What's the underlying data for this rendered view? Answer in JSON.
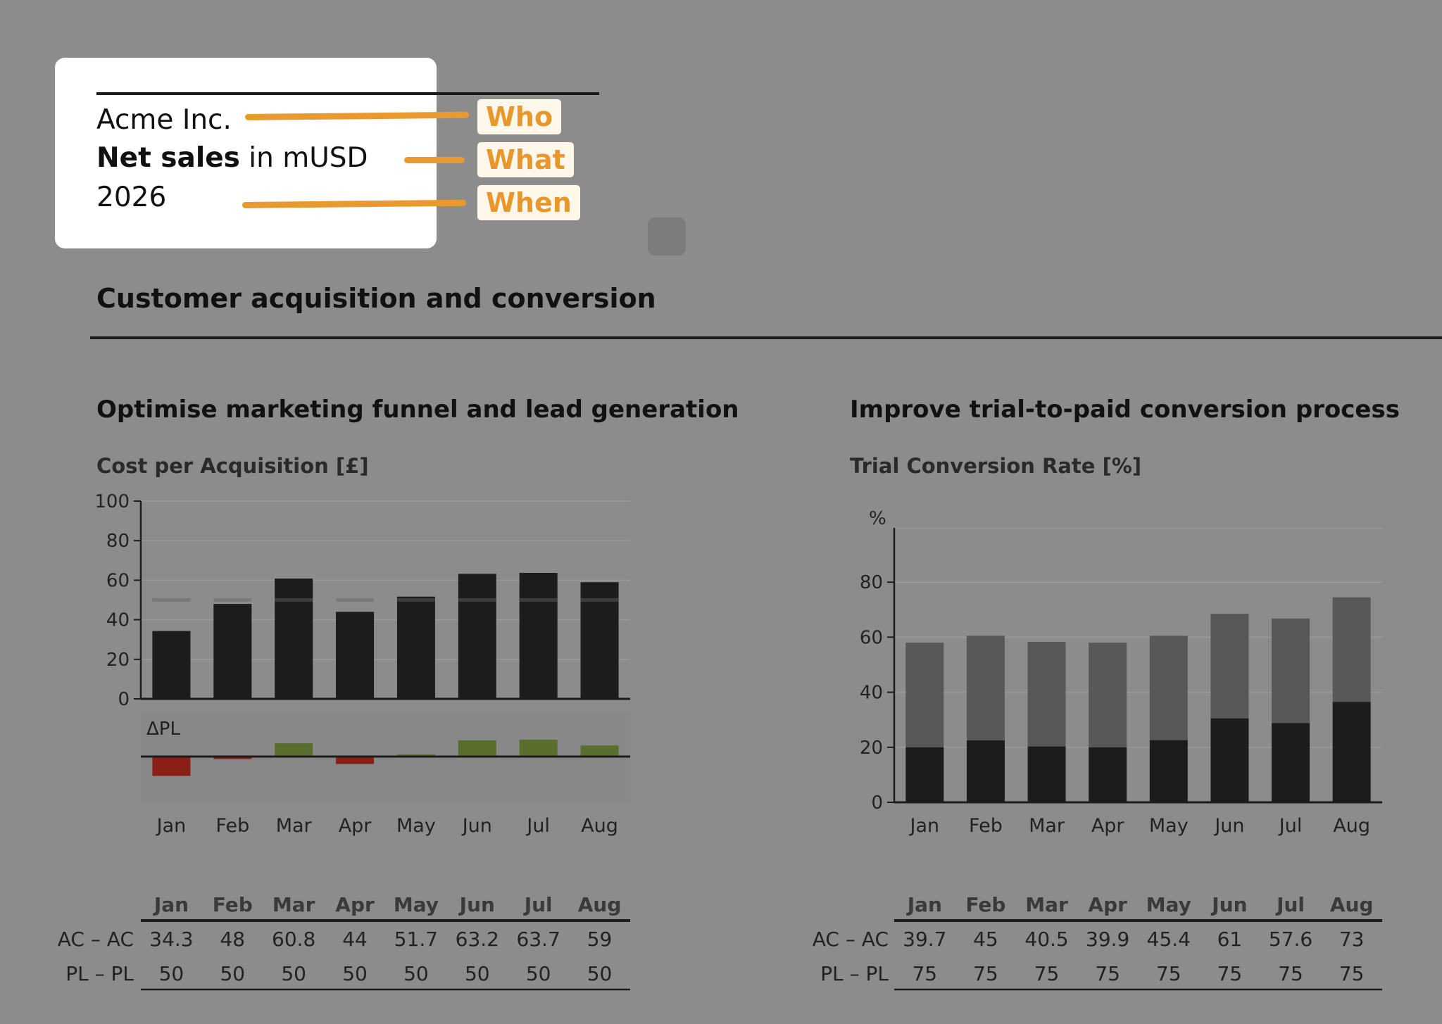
{
  "title_card": {
    "company": "Acme Inc.",
    "measure_bold": "Net sales",
    "measure_rest": " in mUSD",
    "period": "2026",
    "tags": {
      "who": "Who",
      "what": "What",
      "when": "When"
    }
  },
  "page_header": "Customer acquisition and conversion",
  "colors": {
    "background": "#8c8c8c",
    "actual": "#1c1c1c",
    "plan_marker": "#7a7a7a",
    "stack_upper": "#585858",
    "delta_positive": "#5a6e2e",
    "delta_negative": "#8a1f18",
    "accent": "#e8972c"
  },
  "chart_data": [
    {
      "type": "bar",
      "section_title": "Optimise marketing funnel and lead generation",
      "title": "Cost per Acquisition [£]",
      "categories": [
        "Jan",
        "Feb",
        "Mar",
        "Apr",
        "May",
        "Jun",
        "Jul",
        "Aug"
      ],
      "ylim": [
        0,
        100
      ],
      "yticks": [
        0,
        20,
        40,
        60,
        80,
        100
      ],
      "series": [
        {
          "name": "AC",
          "values": [
            34.3,
            48,
            60.8,
            44,
            51.7,
            63.2,
            63.7,
            59
          ]
        },
        {
          "name": "PL",
          "values": [
            50,
            50,
            50,
            50,
            50,
            50,
            50,
            50
          ]
        }
      ],
      "delta_label": "ΔPL",
      "table": {
        "rows": [
          {
            "label": "AC – AC",
            "values": [
              "34.3",
              "48",
              "60.8",
              "44",
              "51.7",
              "63.2",
              "63.7",
              "59"
            ]
          },
          {
            "label": "PL – PL",
            "values": [
              "50",
              "50",
              "50",
              "50",
              "50",
              "50",
              "50",
              "50"
            ]
          }
        ]
      }
    },
    {
      "type": "bar",
      "section_title": "Improve trial-to-paid conversion process",
      "title": "Trial Conversion Rate [%]",
      "unit_label": "%",
      "categories": [
        "Jan",
        "Feb",
        "Mar",
        "Apr",
        "May",
        "Jun",
        "Jul",
        "Aug"
      ],
      "ylim": [
        0,
        100
      ],
      "yticks": [
        0,
        20,
        40,
        60,
        80
      ],
      "stacked": true,
      "segments_lower": [
        20,
        22.5,
        20.3,
        20,
        22.6,
        30.5,
        28.8,
        36.5
      ],
      "segments_total": [
        58,
        60.5,
        58.3,
        58,
        60.5,
        68.5,
        66.8,
        74.5
      ],
      "table": {
        "rows": [
          {
            "label": "AC – AC",
            "values": [
              "39.7",
              "45",
              "40.5",
              "39.9",
              "45.4",
              "61",
              "57.6",
              "73"
            ]
          },
          {
            "label": "PL – PL",
            "values": [
              "75",
              "75",
              "75",
              "75",
              "75",
              "75",
              "75",
              "75"
            ]
          }
        ]
      }
    }
  ]
}
